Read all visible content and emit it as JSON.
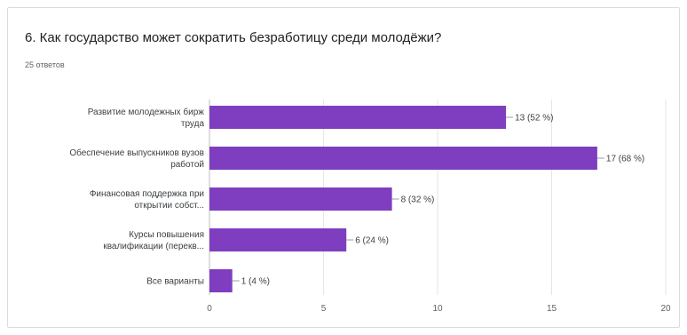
{
  "question": {
    "title": "6. Как государство может сократить безработицу среди молодёжи?",
    "responses": "25 ответов"
  },
  "colors": {
    "bar": "#7e3ebf",
    "grid": "#e6e6e6",
    "axis": "#bdbdbd"
  },
  "chart_data": {
    "type": "bar",
    "orientation": "horizontal",
    "categories": [
      [
        "Развитие молодежных бирж",
        "труда"
      ],
      [
        "Обеспечение выпускников вузов",
        "работой"
      ],
      [
        "Финансовая поддержка при",
        "открытии собст..."
      ],
      [
        "Курсы повышения",
        "квалификации (перекв..."
      ],
      [
        "Все варианты"
      ]
    ],
    "values": [
      13,
      17,
      8,
      6,
      1
    ],
    "value_labels": [
      "13 (52 %)",
      "17 (68 %)",
      "8 (32 %)",
      "6 (24 %)",
      "1 (4 %)"
    ],
    "xlim": [
      0,
      20
    ],
    "xticks": [
      0,
      5,
      10,
      15,
      20
    ],
    "grid": true
  }
}
